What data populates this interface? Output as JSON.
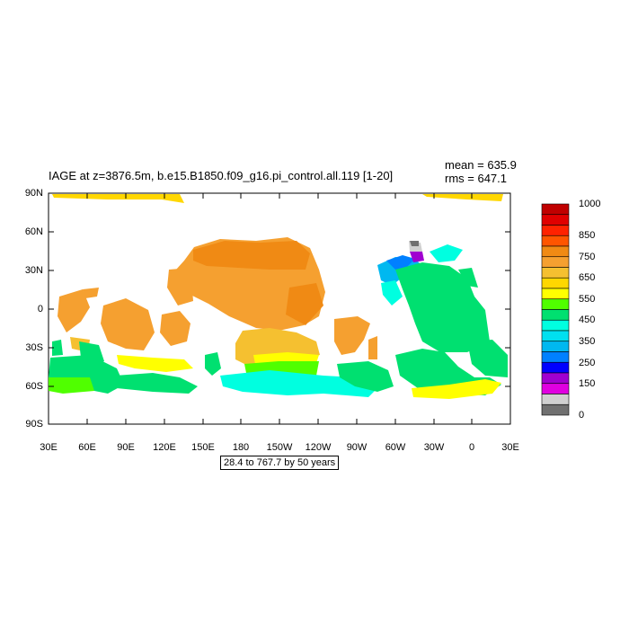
{
  "title": "IAGE at z=3876.5m, b.e15.B1850.f09_g16.pi_control.all.119 [1-20]",
  "stats": {
    "mean": "mean = 635.9",
    "rms": "rms = 647.1"
  },
  "lat_labels": [
    "90N",
    "60N",
    "30N",
    "0",
    "30S",
    "60S",
    "90S"
  ],
  "lon_labels": [
    "30E",
    "60E",
    "90E",
    "120E",
    "150E",
    "180",
    "150W",
    "120W",
    "90W",
    "60W",
    "30W",
    "0",
    "30E"
  ],
  "info_box": "28.4 to 767.7 by 50 years",
  "colorbar": {
    "labels": [
      "1000",
      "850",
      "750",
      "650",
      "550",
      "450",
      "350",
      "250",
      "150",
      "0"
    ],
    "colors": [
      "#c00000",
      "#e00000",
      "#ff2200",
      "#ff5500",
      "#f08a14",
      "#f5a030",
      "#f5c030",
      "#ffd700",
      "#ffff00",
      "#50ff00",
      "#00e070",
      "#00ffe0",
      "#00e0f0",
      "#00b8f0",
      "#0080ff",
      "#0000ff",
      "#a000d0",
      "#e000e0",
      "#d0d0d0",
      "#707070"
    ]
  }
}
